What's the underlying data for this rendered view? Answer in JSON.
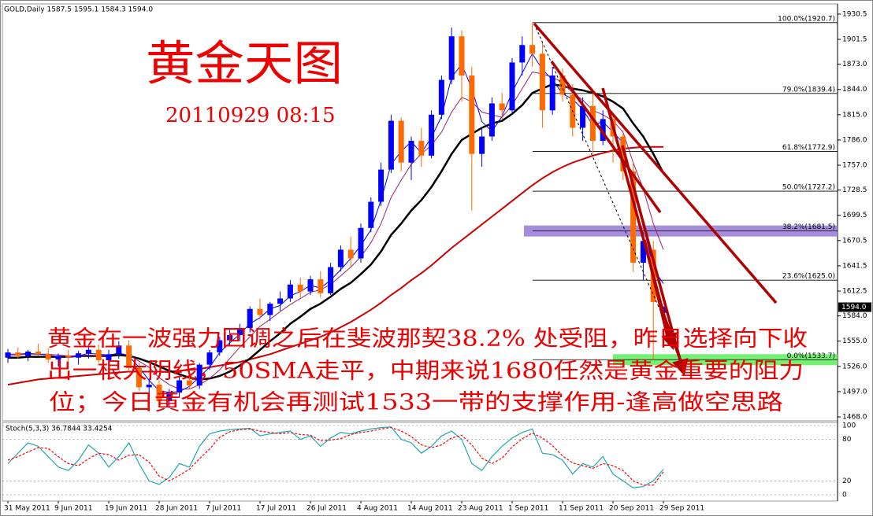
{
  "chart_data": [
    {
      "type": "candlestick",
      "header": "GOLD,Daily  1587.5 1595.1 1584.3 1594.0",
      "title": "黄金天图",
      "subtitle": "20110929 08:15",
      "annotations": [
        "黄金在一波强力回调之后在斐波那契38.2% 处受阻，昨日选择向下收",
        "出一根大阴线，50SMA走平，中期来说1680任然是黄金重要的阻力",
        "位；今日黄金有机会再测试1533一带的支撑作用-逢高做空思路"
      ],
      "categories": [
        "31 May 2011",
        null,
        null,
        null,
        null,
        "9 Jun 2011",
        null,
        null,
        null,
        null,
        "19 Jun 2011",
        null,
        null,
        null,
        null,
        "28 Jun 2011",
        null,
        null,
        null,
        null,
        "7 Jul 2011",
        null,
        null,
        null,
        null,
        "17 Jul 2011",
        null,
        null,
        null,
        null,
        "26 Jul 2011",
        null,
        null,
        null,
        null,
        "4 Aug 2011",
        null,
        null,
        null,
        null,
        "14 Aug 2011",
        null,
        null,
        null,
        null,
        "23 Aug 2011",
        null,
        null,
        null,
        null,
        "1 Sep 2011",
        null,
        null,
        null,
        null,
        "11 Sep 2011",
        null,
        null,
        null,
        null,
        "20 Sep 2011",
        null,
        null,
        null,
        null,
        "29 Sep 2011"
      ],
      "ohlc": [
        [
          1536,
          1546,
          1530,
          1542
        ],
        [
          1542,
          1548,
          1535,
          1538
        ],
        [
          1538,
          1545,
          1532,
          1543
        ],
        [
          1543,
          1552,
          1538,
          1540
        ],
        [
          1540,
          1547,
          1530,
          1534
        ],
        [
          1534,
          1541,
          1526,
          1538
        ],
        [
          1538,
          1545,
          1532,
          1536
        ],
        [
          1536,
          1544,
          1528,
          1541
        ],
        [
          1541,
          1550,
          1535,
          1545
        ],
        [
          1545,
          1551,
          1530,
          1533
        ],
        [
          1533,
          1545,
          1525,
          1540
        ],
        [
          1540,
          1555,
          1535,
          1550
        ],
        [
          1550,
          1556,
          1520,
          1524
        ],
        [
          1524,
          1530,
          1498,
          1502
        ],
        [
          1502,
          1512,
          1495,
          1505
        ],
        [
          1505,
          1510,
          1480,
          1486
        ],
        [
          1486,
          1500,
          1478,
          1496
        ],
        [
          1496,
          1515,
          1490,
          1510
        ],
        [
          1510,
          1520,
          1500,
          1504
        ],
        [
          1504,
          1530,
          1500,
          1528
        ],
        [
          1528,
          1545,
          1522,
          1542
        ],
        [
          1542,
          1560,
          1538,
          1556
        ],
        [
          1556,
          1568,
          1550,
          1562
        ],
        [
          1562,
          1575,
          1555,
          1570
        ],
        [
          1570,
          1595,
          1565,
          1592
        ],
        [
          1592,
          1604,
          1580,
          1585
        ],
        [
          1585,
          1600,
          1578,
          1598
        ],
        [
          1598,
          1612,
          1590,
          1604
        ],
        [
          1604,
          1625,
          1600,
          1620
        ],
        [
          1620,
          1628,
          1605,
          1612
        ],
        [
          1612,
          1630,
          1608,
          1626
        ],
        [
          1626,
          1635,
          1605,
          1610
        ],
        [
          1610,
          1645,
          1608,
          1640
        ],
        [
          1640,
          1665,
          1635,
          1660
        ],
        [
          1660,
          1675,
          1640,
          1650
        ],
        [
          1650,
          1690,
          1645,
          1685
        ],
        [
          1685,
          1720,
          1680,
          1715
        ],
        [
          1715,
          1760,
          1710,
          1752
        ],
        [
          1752,
          1815,
          1748,
          1808
        ],
        [
          1808,
          1812,
          1750,
          1760
        ],
        [
          1760,
          1790,
          1740,
          1785
        ],
        [
          1785,
          1800,
          1755,
          1768
        ],
        [
          1768,
          1820,
          1765,
          1815
        ],
        [
          1815,
          1860,
          1810,
          1855
        ],
        [
          1855,
          1915,
          1850,
          1905
        ],
        [
          1905,
          1912,
          1830,
          1860
        ],
        [
          1860,
          1870,
          1705,
          1770
        ],
        [
          1770,
          1800,
          1755,
          1790
        ],
        [
          1790,
          1835,
          1785,
          1828
        ],
        [
          1828,
          1840,
          1810,
          1820
        ],
        [
          1820,
          1880,
          1815,
          1875
        ],
        [
          1875,
          1905,
          1860,
          1895
        ],
        [
          1895,
          1920.7,
          1870,
          1885
        ],
        [
          1885,
          1898,
          1800,
          1820
        ],
        [
          1820,
          1870,
          1815,
          1860
        ],
        [
          1860,
          1868,
          1830,
          1838
        ],
        [
          1838,
          1850,
          1790,
          1800
        ],
        [
          1800,
          1835,
          1785,
          1825
        ],
        [
          1825,
          1840,
          1770,
          1785
        ],
        [
          1785,
          1820,
          1780,
          1810
        ],
        [
          1810,
          1815,
          1760,
          1790
        ],
        [
          1790,
          1795,
          1740,
          1750
        ],
        [
          1750,
          1760,
          1635,
          1645
        ],
        [
          1645,
          1680,
          1625,
          1670
        ],
        [
          1660,
          1670,
          1533.7,
          1600
        ],
        [
          1587.5,
          1595.1,
          1584.3,
          1594.0
        ]
      ],
      "up_color": "#0000ff",
      "down_color": "#ff6a00",
      "series": [
        {
          "color": "#cc0000",
          "width": 2,
          "values": [
            1505,
            1507,
            1509,
            1511,
            1512,
            1513,
            1514,
            1515,
            1516,
            1517,
            1518,
            1519,
            1520,
            1520,
            1520,
            1520,
            1520,
            1521,
            1522,
            1523,
            1525,
            1527,
            1529,
            1531,
            1534,
            1537,
            1540,
            1544,
            1548,
            1552,
            1556,
            1560,
            1565,
            1571,
            1577,
            1584,
            1591,
            1599,
            1608,
            1616,
            1625,
            1633,
            1642,
            1652,
            1662,
            1671,
            1680,
            1689,
            1698,
            1707,
            1716,
            1725,
            1734,
            1742,
            1749,
            1755,
            1760,
            1764,
            1768,
            1771,
            1774,
            1776,
            1777,
            1778,
            1778,
            1778
          ]
        },
        {
          "color": "#000000",
          "width": 2.5,
          "values": [
            1536,
            1536,
            1537,
            1537,
            1537,
            1537,
            1537,
            1538,
            1538,
            1538,
            1538,
            1539,
            1538,
            1535,
            1531,
            1526,
            1521,
            1517,
            1513,
            1511,
            1512,
            1515,
            1520,
            1527,
            1535,
            1545,
            1555,
            1564,
            1575,
            1583,
            1592,
            1598,
            1606,
            1615,
            1622,
            1632,
            1643,
            1658,
            1677,
            1690,
            1705,
            1717,
            1732,
            1750,
            1770,
            1786,
            1793,
            1800,
            1805,
            1808,
            1816,
            1826,
            1840,
            1845,
            1850,
            1848,
            1845,
            1843,
            1840,
            1836,
            1830,
            1822,
            1805,
            1790,
            1770,
            1748
          ]
        },
        {
          "color": "#a0206a",
          "width": 1,
          "values": [
            1538,
            1539,
            1540,
            1540,
            1540,
            1539,
            1538,
            1538,
            1539,
            1538,
            1539,
            1541,
            1539,
            1532,
            1525,
            1513,
            1505,
            1500,
            1500,
            1505,
            1512,
            1522,
            1535,
            1548,
            1560,
            1572,
            1580,
            1589,
            1597,
            1604,
            1611,
            1614,
            1620,
            1630,
            1640,
            1652,
            1668,
            1690,
            1720,
            1740,
            1758,
            1770,
            1780,
            1795,
            1818,
            1835,
            1830,
            1818,
            1815,
            1812,
            1826,
            1845,
            1864,
            1862,
            1858,
            1852,
            1840,
            1832,
            1820,
            1815,
            1808,
            1795,
            1760,
            1730,
            1690,
            1660
          ]
        },
        {
          "color": "#0000ff",
          "width": 1,
          "values": [
            1540,
            1540,
            1541,
            1540,
            1539,
            1537,
            1536,
            1538,
            1541,
            1540,
            1539,
            1541,
            1538,
            1525,
            1510,
            1498,
            1496,
            1497,
            1503,
            1514,
            1525,
            1542,
            1553,
            1563,
            1575,
            1582,
            1592,
            1596,
            1607,
            1612,
            1619,
            1616,
            1625,
            1637,
            1650,
            1665,
            1683,
            1717,
            1758,
            1773,
            1784,
            1771,
            1789,
            1813,
            1858,
            1873,
            1845,
            1807,
            1796,
            1813,
            1841,
            1863,
            1885,
            1867,
            1855,
            1839,
            1833,
            1821,
            1803,
            1807,
            1795,
            1783,
            1728,
            1688,
            1638,
            1621
          ]
        }
      ],
      "fib_levels": [
        {
          "value": 1920.7,
          "label": "100.0%(1920.7)"
        },
        {
          "value": 1839.4,
          "label": "79.0%(1839.4)"
        },
        {
          "value": 1772.9,
          "label": "61.8%(1772.9)"
        },
        {
          "value": 1727.2,
          "label": "50.0%(1727.2)"
        },
        {
          "value": 1681.5,
          "label": "38.2%(1681.5)",
          "highlight": "#9b7fd8"
        },
        {
          "value": 1625.0,
          "label": "23.6%(1625.0)"
        },
        {
          "value": 1533.7,
          "label": "0.0%(1533.7)",
          "highlight": "#66ee66"
        }
      ],
      "last_price": {
        "value": 1594.0,
        "label": "1594.0"
      },
      "ylim": [
        1463.5,
        1942.2
      ],
      "yticks": [
        {
          "value": 1468.0,
          "label": "1468.0"
        },
        {
          "value": 1497.0,
          "label": "1497.0"
        },
        {
          "value": 1526.0,
          "label": "1526.0"
        },
        {
          "value": 1555.0,
          "label": "1555.0"
        },
        {
          "value": 1584.0,
          "label": "1584.0"
        },
        {
          "value": 1612.5,
          "label": "1612.5"
        },
        {
          "value": 1641.5,
          "label": "1641.5"
        },
        {
          "value": 1670.5,
          "label": "1670.5"
        },
        {
          "value": 1699.5,
          "label": "1699.5"
        },
        {
          "value": 1728.5,
          "label": "1728.5"
        },
        {
          "value": 1757.0,
          "label": "1757.0"
        },
        {
          "value": 1786.0,
          "label": "1786.0"
        },
        {
          "value": 1815.0,
          "label": "1815.0"
        },
        {
          "value": 1844.0,
          "label": "1844.0"
        },
        {
          "value": 1873.0,
          "label": "1873.0"
        },
        {
          "value": 1901.5,
          "label": "1901.5"
        },
        {
          "value": 1930.5,
          "label": "1930.5"
        }
      ]
    },
    {
      "type": "line",
      "title": "Stoch(5,3,3) 36.7844 33.4254",
      "ylim": [
        -9.1,
        104.5
      ],
      "yticks": [
        0,
        20,
        80,
        100
      ],
      "series": [
        {
          "color": "#20a8b0",
          "dash": false,
          "values": [
            45,
            60,
            75,
            70,
            55,
            40,
            35,
            50,
            72,
            60,
            40,
            55,
            75,
            45,
            20,
            15,
            25,
            45,
            40,
            70,
            88,
            92,
            94,
            95,
            96,
            85,
            88,
            90,
            92,
            80,
            85,
            70,
            82,
            90,
            88,
            92,
            95,
            97,
            98,
            80,
            75,
            60,
            70,
            85,
            92,
            80,
            45,
            35,
            55,
            70,
            82,
            90,
            95,
            60,
            58,
            50,
            30,
            45,
            40,
            55,
            30,
            20,
            10,
            12,
            20,
            36.7844
          ]
        },
        {
          "color": "#ff0000",
          "dash": true,
          "values": [
            50,
            55,
            62,
            68,
            67,
            55,
            45,
            42,
            52,
            60,
            58,
            50,
            57,
            58,
            47,
            27,
            20,
            28,
            37,
            52,
            66,
            83,
            91,
            94,
            95,
            92,
            90,
            88,
            90,
            87,
            86,
            78,
            79,
            81,
            87,
            90,
            92,
            95,
            97,
            92,
            84,
            72,
            68,
            72,
            82,
            86,
            72,
            53,
            45,
            53,
            69,
            81,
            89,
            82,
            71,
            56,
            46,
            42,
            38,
            45,
            42,
            35,
            20,
            14,
            14,
            33.4254
          ]
        }
      ]
    }
  ]
}
